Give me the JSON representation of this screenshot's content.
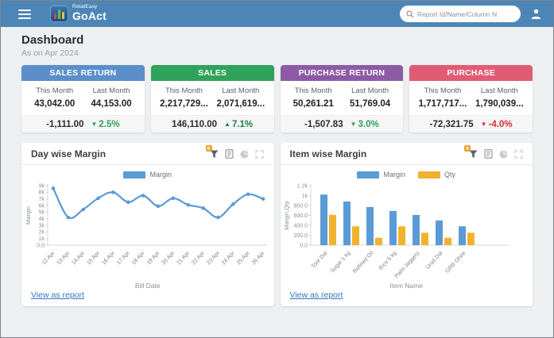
{
  "header": {
    "brand_top": "RetailEasy",
    "brand_bottom": "GoAct",
    "search_placeholder": "Report Id/Name/Column N"
  },
  "page": {
    "title": "Dashboard",
    "subtitle": "As on Apr 2024"
  },
  "kpis": [
    {
      "title": "SALES RETURN",
      "color": "#5a8fca",
      "this_label": "This Month",
      "last_label": "Last Month",
      "this_value": "43,042.00",
      "last_value": "44,153.00",
      "delta": "-1,111.00",
      "arrow": "▼",
      "pct": "2.5%",
      "trend_color": "#2f9e5b"
    },
    {
      "title": "SALES",
      "color": "#2fa35c",
      "this_label": "This Month",
      "last_label": "Last Month",
      "this_value": "2,217,729...",
      "last_value": "2,071,619...",
      "delta": "146,110.00",
      "arrow": "▲",
      "pct": "7.1%",
      "trend_color": "#1e7e43"
    },
    {
      "title": "PURCHASE RETURN",
      "color": "#8d5ba6",
      "this_label": "This Month",
      "last_label": "Last Month",
      "this_value": "50,261.21",
      "last_value": "51,769.04",
      "delta": "-1,507.83",
      "arrow": "▼",
      "pct": "3.0%",
      "trend_color": "#2f9e5b"
    },
    {
      "title": "PURCHASE",
      "color": "#e05c73",
      "this_label": "This Month",
      "last_label": "Last Month",
      "this_value": "1,717,717...",
      "last_value": "1,790,039...",
      "delta": "-72,321.75",
      "arrow": "▼",
      "pct": "-4.0%",
      "trend_color": "#d32f2f"
    }
  ],
  "panels": [
    {
      "title": "Day wise Margin",
      "filter_badge": "6",
      "link": "View as report"
    },
    {
      "title": "Item wise Margin",
      "filter_badge": "6",
      "link": "View as report"
    }
  ],
  "chart_data": [
    {
      "type": "line",
      "title": "Day wise Margin",
      "series_name": "Margin",
      "color": "#5b9bd5",
      "x": [
        "12 Apr",
        "13 Apr",
        "14 Apr",
        "15 Apr",
        "16 Apr",
        "17 Apr",
        "18 Apr",
        "19 Apr",
        "20 Apr",
        "21 Apr",
        "22 Apr",
        "23 Apr",
        "24 Apr",
        "25 Apr",
        "26 Apr"
      ],
      "values": [
        8600,
        4200,
        5400,
        7100,
        8000,
        6500,
        7500,
        5900,
        7100,
        6100,
        5600,
        4200,
        6200,
        7700,
        7000
      ],
      "xlabel": "Bill Date",
      "ylabel": "Margin",
      "ylim": [
        0,
        9000
      ],
      "ytick_values": [
        0,
        1000,
        2000,
        3000,
        4000,
        5000,
        6000,
        7000,
        8000,
        9000
      ],
      "ytick_labels": [
        "0.0",
        "1k",
        "2k",
        "3k",
        "4k",
        "5k",
        "6k",
        "7k",
        "8k",
        "9k"
      ],
      "grid": false,
      "legend_position": "top"
    },
    {
      "type": "bar",
      "title": "Item wise Margin",
      "categories": [
        "Toor Dal",
        "Sugar 1 kg",
        "Refined Oil",
        "Rice 5 kg",
        "Palm Jaggery",
        "Urad Dal",
        "GRB Ghee"
      ],
      "series": [
        {
          "name": "Margin",
          "color": "#5b9bd5",
          "values": [
            1020,
            880,
            770,
            690,
            610,
            500,
            380
          ]
        },
        {
          "name": "Qty",
          "color": "#f0b32e",
          "values": [
            610,
            380,
            150,
            380,
            250,
            150,
            250
          ]
        }
      ],
      "xlabel": "Item Name",
      "ylabel": "Margin,Qty",
      "ylim": [
        0,
        1200
      ],
      "ytick_values": [
        0,
        200,
        400,
        600,
        800,
        1000,
        1200
      ],
      "ytick_labels": [
        "0.0",
        "200.0",
        "400.0",
        "600.0",
        "800.0",
        "1k",
        "1.2k"
      ],
      "grid": false,
      "legend_position": "top"
    }
  ]
}
